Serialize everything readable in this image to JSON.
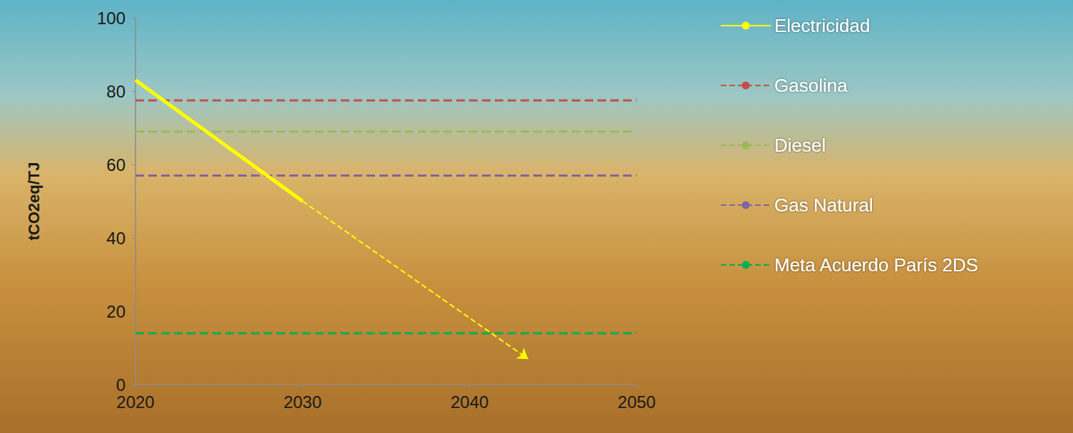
{
  "chart_data": {
    "type": "line",
    "ylabel": "tCO2eq/TJ",
    "xlim": [
      2020,
      2050
    ],
    "xticks": [
      2020,
      2030,
      2040,
      2050
    ],
    "ylim": [
      0,
      100
    ],
    "yticks": [
      0,
      20,
      40,
      60,
      80,
      100
    ],
    "grid": false,
    "legend": "right",
    "series": [
      {
        "name": "Electricidad",
        "color": "#ffff00",
        "line_style": "solid",
        "x": [
          2020,
          2030
        ],
        "values": [
          83,
          50
        ]
      },
      {
        "color": "#ffff00",
        "line_style": "dashed",
        "marker": "arrow",
        "x": [
          2030,
          2043.5
        ],
        "values": [
          50,
          7
        ]
      },
      {
        "name": "Gasolina",
        "color": "#c0504d",
        "line_style": "dashed",
        "x": [
          2020,
          2050
        ],
        "values": [
          77.5,
          77.5
        ]
      },
      {
        "name": "Diesel",
        "color": "#9bbb59",
        "line_style": "dashed",
        "x": [
          2020,
          2050
        ],
        "values": [
          69,
          69
        ]
      },
      {
        "name": "Gas Natural",
        "color": "#8064a2",
        "line_style": "dashed",
        "x": [
          2020,
          2050
        ],
        "values": [
          57,
          57
        ]
      },
      {
        "name": "Meta Acuerdo París 2DS",
        "color": "#00b050",
        "line_style": "dashed",
        "x": [
          2020,
          2050
        ],
        "values": [
          14,
          14
        ]
      }
    ]
  }
}
